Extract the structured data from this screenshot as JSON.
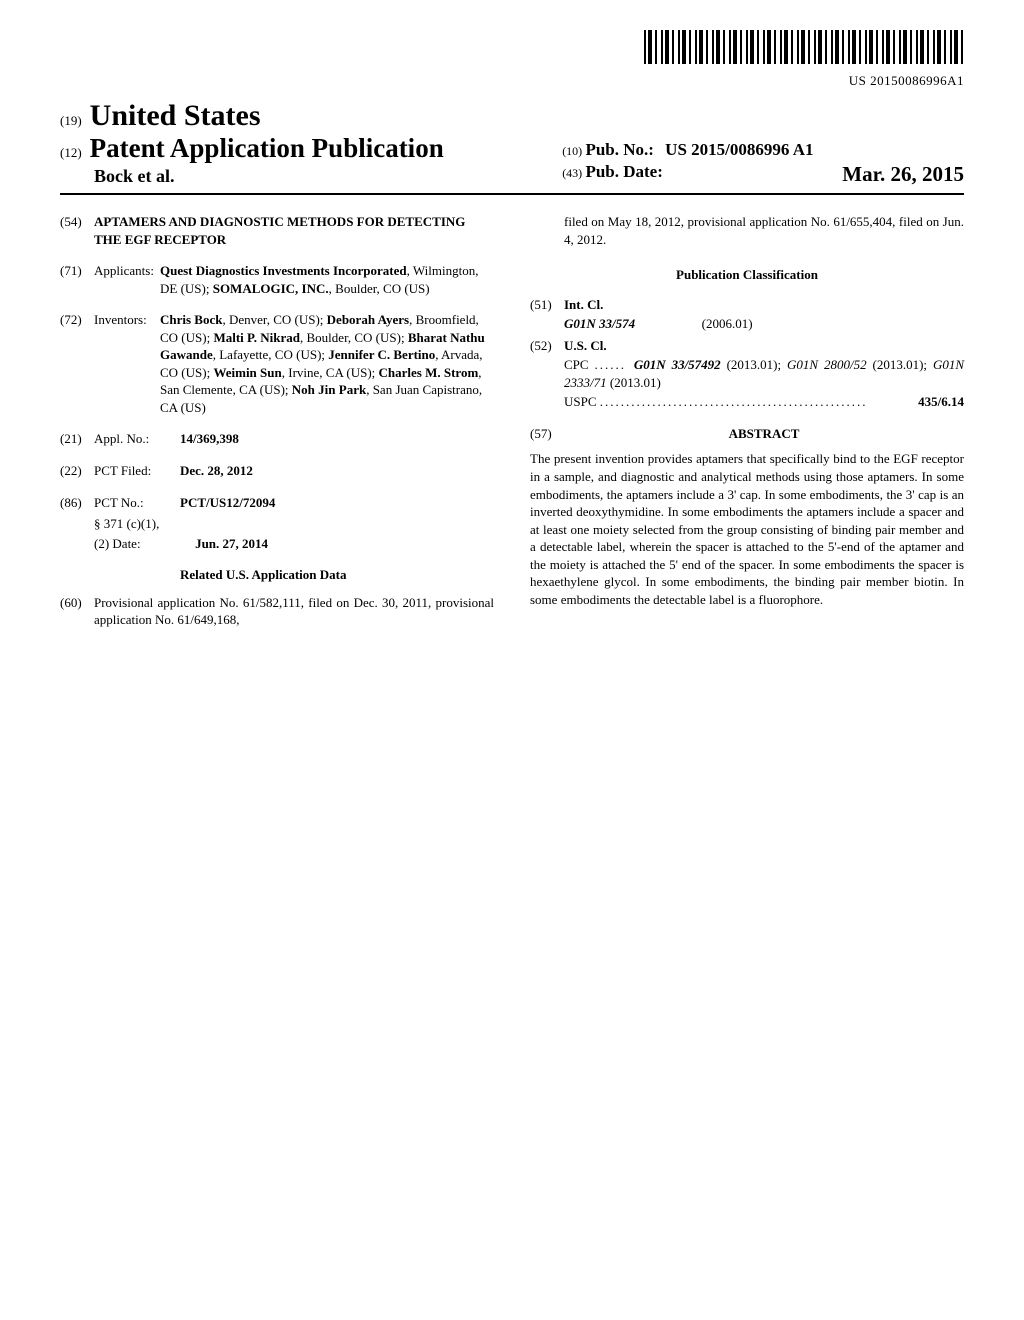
{
  "barcode_number": "US 20150086996A1",
  "header": {
    "code19": "(19)",
    "country": "United States",
    "code12": "(12)",
    "pub_type": "Patent Application Publication",
    "authors_line": "Bock et al.",
    "code10": "(10)",
    "pub_no_label": "Pub. No.:",
    "pub_no": "US 2015/0086996 A1",
    "code43": "(43)",
    "pub_date_label": "Pub. Date:",
    "pub_date": "Mar. 26, 2015"
  },
  "left": {
    "f54": {
      "code": "(54)",
      "title": "APTAMERS AND DIAGNOSTIC METHODS FOR DETECTING THE EGF RECEPTOR"
    },
    "f71": {
      "code": "(71)",
      "label": "Applicants:",
      "body_html": "<b>Quest Diagnostics Investments Incorporated</b>, Wilmington, DE (US); <b>SOMALOGIC, INC.</b>, Boulder, CO (US)"
    },
    "f72": {
      "code": "(72)",
      "label": "Inventors:",
      "body_html": "<b>Chris Bock</b>, Denver, CO (US); <b>Deborah Ayers</b>, Broomfield, CO (US); <b>Malti P. Nikrad</b>, Boulder, CO (US); <b>Bharat Nathu Gawande</b>, Lafayette, CO (US); <b>Jennifer C. Bertino</b>, Arvada, CO (US); <b>Weimin Sun</b>, Irvine, CA (US); <b>Charles M. Strom</b>, San Clemente, CA (US); <b>Noh Jin Park</b>, San Juan Capistrano, CA (US)"
    },
    "f21": {
      "code": "(21)",
      "label": "Appl. No.:",
      "value": "14/369,398"
    },
    "f22": {
      "code": "(22)",
      "label": "PCT Filed:",
      "value": "Dec. 28, 2012"
    },
    "f86": {
      "code": "(86)",
      "label": "PCT No.:",
      "value": "PCT/US12/72094",
      "sub1_label": "§ 371 (c)(1),",
      "sub2_label": "(2) Date:",
      "sub2_value": "Jun. 27, 2014"
    },
    "related_heading": "Related U.S. Application Data",
    "f60": {
      "code": "(60)",
      "body": "Provisional application No. 61/582,111, filed on Dec. 30, 2011, provisional application No. 61/649,168,"
    }
  },
  "right": {
    "continuation": "filed on May 18, 2012, provisional application No. 61/655,404, filed on Jun. 4, 2012.",
    "pub_class_heading": "Publication Classification",
    "f51": {
      "code": "(51)",
      "label": "Int. Cl.",
      "class_sym": "G01N 33/574",
      "class_date": "(2006.01)"
    },
    "f52": {
      "code": "(52)",
      "label": "U.S. Cl.",
      "cpc_label": "CPC",
      "cpc_body": "<i><b>G01N 33/57492</b></i> (2013.01); <i>G01N 2800/52</i> (2013.01); <i>G01N 2333/71</i> (2013.01)",
      "uspc_label": "USPC",
      "uspc_value": "435/6.14"
    },
    "f57": {
      "code": "(57)",
      "label": "ABSTRACT"
    },
    "abstract": "The present invention provides aptamers that specifically bind to the EGF receptor in a sample, and diagnostic and analytical methods using those aptamers. In some embodiments, the aptamers include a 3' cap. In some embodiments, the 3' cap is an inverted deoxythymidine. In some embodiments the aptamers include a spacer and at least one moiety selected from the group consisting of binding pair member and a detectable label, wherein the spacer is attached to the 5'-end of the aptamer and the moiety is attached the 5' end of the spacer. In some embodiments the spacer is hexaethylene glycol. In some embodiments, the binding pair member biotin. In some embodiments the detectable label is a fluorophore."
  }
}
